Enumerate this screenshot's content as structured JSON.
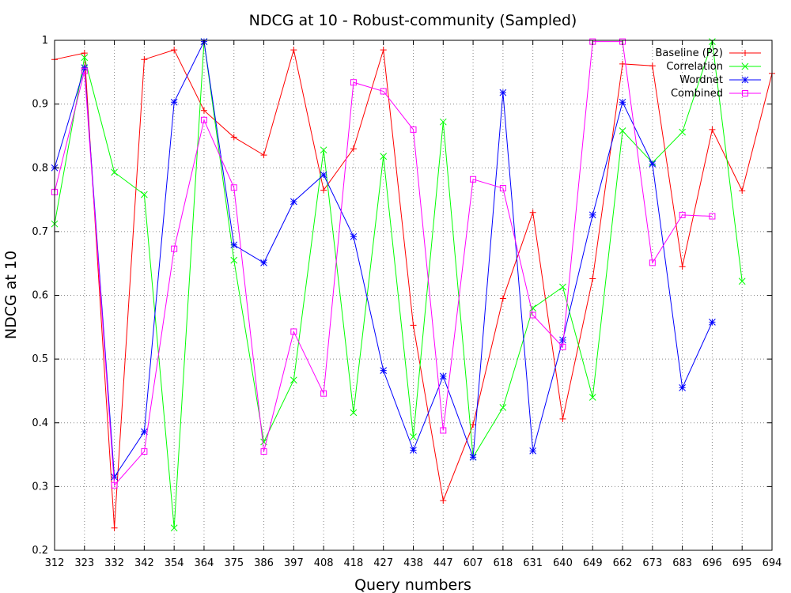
{
  "chart_data": {
    "type": "line",
    "title": "NDCG at 10 - Robust-community (Sampled)",
    "xlabel": "Query numbers",
    "ylabel": "NDCG at 10",
    "categories": [
      "312",
      "323",
      "332",
      "342",
      "354",
      "364",
      "375",
      "386",
      "397",
      "408",
      "418",
      "427",
      "438",
      "447",
      "607",
      "618",
      "631",
      "640",
      "649",
      "662",
      "673",
      "683",
      "696",
      "695",
      "694"
    ],
    "ylim": [
      0.2,
      1.0
    ],
    "yticks": [
      0.2,
      0.3,
      0.4,
      0.5,
      0.6,
      0.7,
      0.8,
      0.9,
      1.0
    ],
    "ytick_labels": [
      "0.2",
      "0.3",
      "0.4",
      "0.5",
      "0.6",
      "0.7",
      "0.8",
      "0.9",
      "1"
    ],
    "grid": true,
    "legend_position": "top-right",
    "series": [
      {
        "name": "Baseline (P2)",
        "color": "#ff0000",
        "marker": "plus",
        "values": [
          0.97,
          0.98,
          0.235,
          0.97,
          0.985,
          0.89,
          0.848,
          0.82,
          0.985,
          0.765,
          0.83,
          0.985,
          0.553,
          0.278,
          0.397,
          0.595,
          0.73,
          0.406,
          0.626,
          0.963,
          0.96,
          0.645,
          0.86,
          0.764,
          0.948
        ]
      },
      {
        "name": "Correlation",
        "color": "#00ff00",
        "marker": "cross",
        "values": [
          0.712,
          0.973,
          0.793,
          0.758,
          0.235,
          0.998,
          0.655,
          0.37,
          0.467,
          0.828,
          0.416,
          0.818,
          0.378,
          0.872,
          0.346,
          0.424,
          0.58,
          0.613,
          0.44,
          0.858,
          0.808,
          0.856,
          0.998,
          0.622,
          null
        ]
      },
      {
        "name": "Wordnet",
        "color": "#0000ff",
        "marker": "star",
        "values": [
          0.8,
          0.957,
          0.315,
          0.386,
          0.903,
          0.998,
          0.679,
          0.651,
          0.747,
          0.789,
          0.692,
          0.482,
          0.357,
          0.473,
          0.346,
          0.918,
          0.356,
          0.53,
          0.726,
          0.903,
          0.806,
          0.455,
          0.558,
          null,
          null
        ]
      },
      {
        "name": "Combined",
        "color": "#ff00ff",
        "marker": "square",
        "values": [
          0.762,
          0.952,
          0.302,
          0.355,
          0.673,
          0.875,
          0.769,
          0.355,
          0.543,
          0.446,
          0.934,
          0.92,
          0.86,
          0.388,
          0.782,
          0.768,
          0.569,
          0.519,
          0.998,
          0.998,
          0.651,
          0.726,
          0.724,
          null,
          null
        ]
      }
    ]
  }
}
